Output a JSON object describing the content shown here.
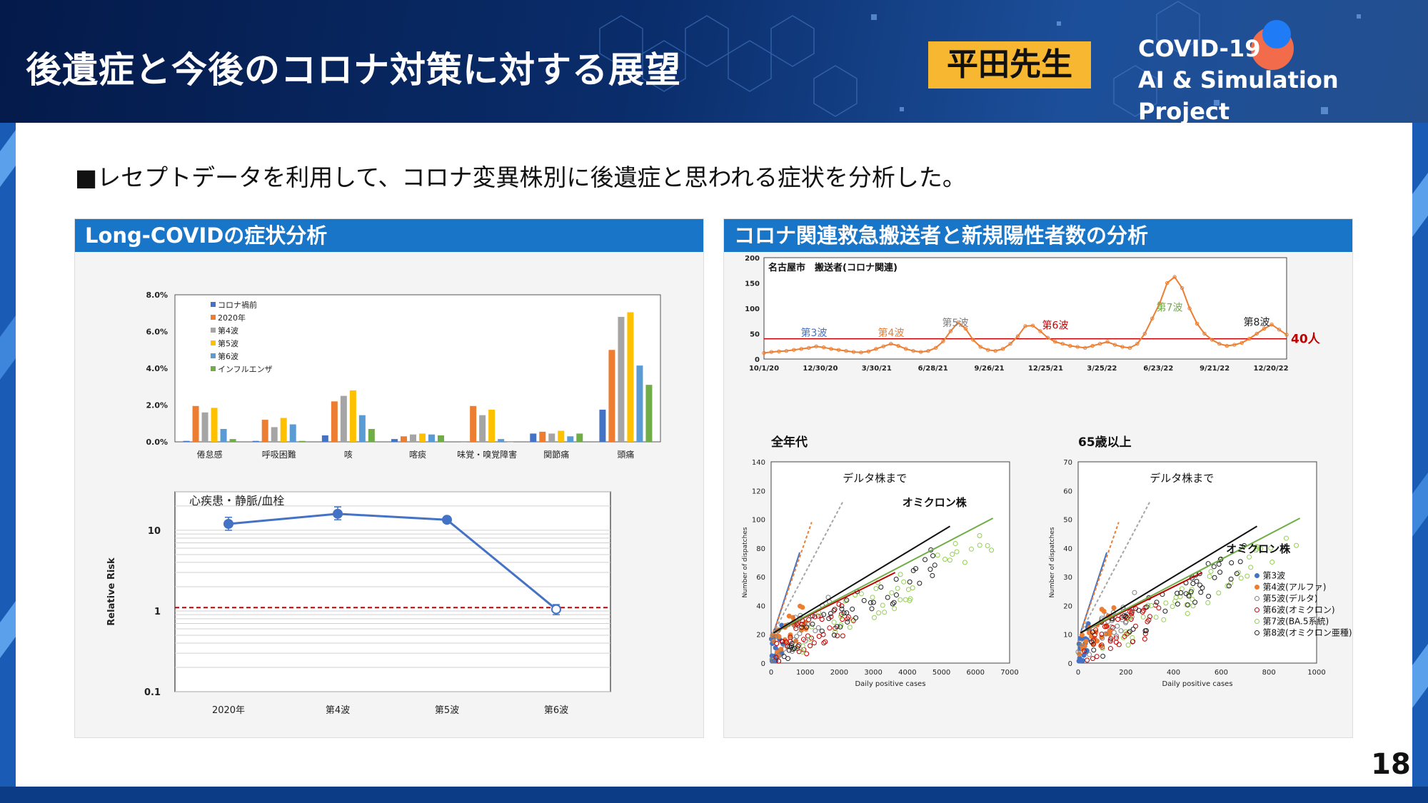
{
  "header": {
    "title": "後遺症と今後のコロナ対策に対する展望",
    "speaker": "平田先生",
    "project_line1": "COVID-19",
    "project_line2": "AI & Simulation Project"
  },
  "intro": "■レセプトデータを利用して、コロナ変異株別に後遺症と思われる症状を分析した。",
  "page_number": "18",
  "left_panel": {
    "title": "Long-COVIDの症状分析"
  },
  "right_panel": {
    "title": "コロナ関連救急搬送者と新規陽性者数の分析"
  },
  "colors": {
    "blue": "#4472c4",
    "orange": "#ed7d31",
    "gray": "#a5a5a5",
    "yellow": "#ffc000",
    "lightblue": "#5b9bd5",
    "green": "#70ad47",
    "header_blue": "#1875c8",
    "badge": "#f7b731",
    "ref_red": "#c00000"
  },
  "chart_data": [
    {
      "type": "bar",
      "categories": [
        "倦怠感",
        "呼吸困難",
        "咳",
        "喀痰",
        "味覚・嗅覚障害",
        "関節痛",
        "頭痛"
      ],
      "series": [
        {
          "name": "コロナ禍前",
          "values": [
            0.05,
            0.05,
            0.35,
            0.15,
            0.0,
            0.45,
            1.75
          ]
        },
        {
          "name": "2020年",
          "values": [
            1.95,
            1.2,
            2.2,
            0.3,
            1.95,
            0.55,
            5.0
          ]
        },
        {
          "name": "第4波",
          "values": [
            1.6,
            0.8,
            2.5,
            0.4,
            1.45,
            0.45,
            6.8
          ]
        },
        {
          "name": "第5波",
          "values": [
            1.85,
            1.3,
            2.8,
            0.45,
            1.75,
            0.6,
            7.05
          ]
        },
        {
          "name": "第6波",
          "values": [
            0.7,
            0.95,
            1.45,
            0.4,
            0.15,
            0.3,
            4.15
          ]
        },
        {
          "name": "インフルエンザ",
          "values": [
            0.15,
            0.05,
            0.7,
            0.35,
            0.0,
            0.45,
            3.1
          ]
        }
      ],
      "yticks": [
        "0.0%",
        "2.0%",
        "4.0%",
        "6.0%",
        "8.0%"
      ],
      "ylim": [
        0,
        8
      ]
    },
    {
      "type": "line",
      "title": "心疾患・静脈/血栓",
      "ylabel": "Relative Risk",
      "categories": [
        "2020年",
        "第4波",
        "第5波",
        "第6波"
      ],
      "values": [
        12.0,
        16.0,
        13.5,
        1.05
      ],
      "err_low": [
        10.0,
        13.5,
        12.5,
        0.9
      ],
      "err_high": [
        14.5,
        19.5,
        14.5,
        1.2
      ],
      "yscale": "log",
      "ylim": [
        0.1,
        30
      ],
      "yticks": [
        "0.1",
        "1",
        "10"
      ],
      "reference_line": 1.1
    },
    {
      "type": "line",
      "title": "名古屋市　搬送者(コロナ関連)",
      "xticks": [
        "10/1/20",
        "12/30/20",
        "3/30/21",
        "6/28/21",
        "9/26/21",
        "12/25/21",
        "3/25/22",
        "6/23/22",
        "9/21/22",
        "12/20/22"
      ],
      "yticks": [
        "0",
        "50",
        "100",
        "150",
        "200"
      ],
      "ylim": [
        0,
        200
      ],
      "reference_value": 40,
      "reference_label": "40人",
      "annotations": [
        "第3波",
        "第4波",
        "第5波",
        "第6波",
        "第7波",
        "第8波"
      ],
      "series_values": [
        12,
        14,
        15,
        16,
        18,
        20,
        22,
        25,
        23,
        20,
        18,
        16,
        14,
        13,
        15,
        20,
        25,
        30,
        26,
        20,
        16,
        14,
        16,
        22,
        35,
        55,
        72,
        60,
        38,
        24,
        18,
        16,
        20,
        30,
        45,
        65,
        66,
        55,
        42,
        34,
        30,
        26,
        24,
        22,
        26,
        30,
        34,
        28,
        24,
        22,
        30,
        50,
        80,
        110,
        150,
        162,
        140,
        100,
        70,
        50,
        38,
        30,
        26,
        28,
        32,
        40,
        50,
        60,
        68,
        58,
        48
      ]
    },
    {
      "type": "scatter",
      "title": "全年代",
      "xlabel": "Daily positive cases",
      "ylabel": "Number of dispatches",
      "xlim": [
        0,
        7000
      ],
      "ylim": [
        0,
        140
      ],
      "xticks": [
        "0",
        "1000",
        "2000",
        "3000",
        "4000",
        "5000",
        "6000",
        "7000"
      ],
      "yticks": [
        "0",
        "20",
        "40",
        "60",
        "80",
        "100",
        "120",
        "140"
      ],
      "annotations": [
        "デルタ株まで",
        "オミクロン株"
      ]
    },
    {
      "type": "scatter",
      "title": "65歳以上",
      "xlabel": "Daily positive cases",
      "ylabel": "Number of dispatches",
      "xlim": [
        0,
        1000
      ],
      "ylim": [
        0,
        70
      ],
      "xticks": [
        "0",
        "200",
        "400",
        "600",
        "800",
        "1000"
      ],
      "yticks": [
        "0",
        "10",
        "20",
        "30",
        "40",
        "50",
        "60",
        "70"
      ],
      "annotations": [
        "デルタ株まで",
        "オミクロン株"
      ],
      "legend": [
        "第3波",
        "第4波(アルファ)",
        "第5波(デルタ)",
        "第6波(オミクロン)",
        "第7波(BA.5系統)",
        "第8波(オミクロン亜種)"
      ]
    }
  ]
}
